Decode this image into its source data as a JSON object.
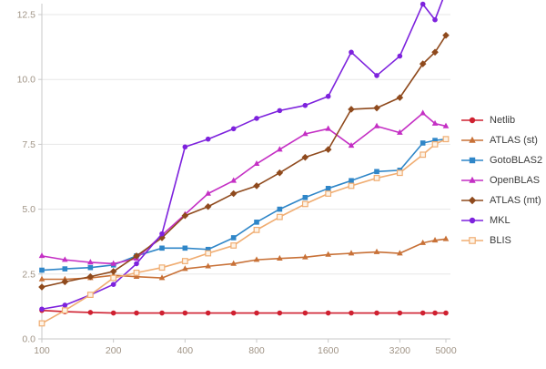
{
  "chart_data": {
    "type": "line",
    "title": "",
    "xlabel": "",
    "ylabel": "",
    "x_scale": "log",
    "grid": "horizontal",
    "legend_position": "right",
    "background": "#ffffff",
    "grid_color": "#e7e7e7",
    "axis_color": "#c9c9c9",
    "tick_label_color": "#a09486",
    "legend_text_color": "#3c3c3c",
    "xlim": [
      100,
      5000
    ],
    "ylim": [
      0,
      13.05
    ],
    "x": [
      100,
      125,
      160,
      200,
      250,
      320,
      400,
      500,
      640,
      800,
      1000,
      1280,
      1600,
      2000,
      2560,
      3200,
      4000,
      4500,
      5000
    ],
    "x_tick_values": [
      100,
      200,
      400,
      800,
      1600,
      3200,
      5000
    ],
    "x_tick_labels": [
      "100",
      "200",
      "400",
      "800",
      "1600",
      "3200",
      "5000"
    ],
    "y_tick_values": [
      0,
      2.5,
      5,
      7.5,
      10,
      12.5
    ],
    "y_tick_labels": [
      "0.0",
      "2.5",
      "5.0",
      "7.5",
      "10.0",
      "12.5"
    ],
    "series": [
      {
        "name": "Netlib",
        "color": "#cf2030",
        "marker": "circle",
        "marker_fill": "#cf2030",
        "values": [
          1.1,
          1.05,
          1.02,
          1.0,
          1.0,
          1.0,
          1.0,
          1.0,
          1.0,
          1.0,
          1.0,
          1.0,
          1.0,
          1.0,
          1.0,
          1.0,
          1.0,
          1.0,
          1.0
        ]
      },
      {
        "name": "ATLAS (st)",
        "color": "#c87137",
        "marker": "triangle",
        "marker_fill": "#c87137",
        "values": [
          2.3,
          2.3,
          2.35,
          2.45,
          2.4,
          2.35,
          2.7,
          2.8,
          2.9,
          3.05,
          3.1,
          3.15,
          3.25,
          3.3,
          3.35,
          3.3,
          3.7,
          3.8,
          3.85
        ]
      },
      {
        "name": "GotoBLAS2",
        "color": "#2f86c8",
        "marker": "square",
        "marker_fill": "#2f86c8",
        "values": [
          2.65,
          2.7,
          2.75,
          2.85,
          3.2,
          3.5,
          3.5,
          3.45,
          3.9,
          4.5,
          5.0,
          5.45,
          5.8,
          6.1,
          6.45,
          6.5,
          7.55,
          7.65,
          7.7
        ]
      },
      {
        "name": "OpenBLAS",
        "color": "#c42fc4",
        "marker": "triangle",
        "marker_fill": "#c42fc4",
        "values": [
          3.2,
          3.05,
          2.95,
          2.9,
          3.1,
          4.0,
          4.8,
          5.6,
          6.1,
          6.75,
          7.3,
          7.9,
          8.1,
          7.45,
          8.2,
          7.95,
          8.7,
          8.3,
          8.2
        ]
      },
      {
        "name": "ATLAS (mt)",
        "color": "#8f4a1d",
        "marker": "diamond",
        "marker_fill": "#8f4a1d",
        "values": [
          2.0,
          2.2,
          2.4,
          2.6,
          3.2,
          3.9,
          4.75,
          5.1,
          5.6,
          5.9,
          6.4,
          7.0,
          7.3,
          8.85,
          8.9,
          9.3,
          10.6,
          11.05,
          11.7
        ]
      },
      {
        "name": "MKL",
        "color": "#7d22dd",
        "marker": "circle",
        "marker_fill": "#7d22dd",
        "values": [
          1.15,
          1.3,
          1.7,
          2.1,
          2.9,
          4.05,
          7.4,
          7.7,
          8.1,
          8.5,
          8.8,
          9.0,
          9.35,
          11.05,
          10.15,
          10.9,
          12.9,
          12.3,
          13.4
        ]
      },
      {
        "name": "BLIS",
        "color": "#f0ad72",
        "marker": "square-open",
        "marker_fill": "#fdf3e7",
        "values": [
          0.6,
          1.1,
          1.7,
          2.35,
          2.55,
          2.75,
          3.0,
          3.3,
          3.6,
          4.2,
          4.7,
          5.2,
          5.6,
          5.9,
          6.2,
          6.4,
          7.1,
          7.5,
          7.7
        ]
      }
    ]
  }
}
